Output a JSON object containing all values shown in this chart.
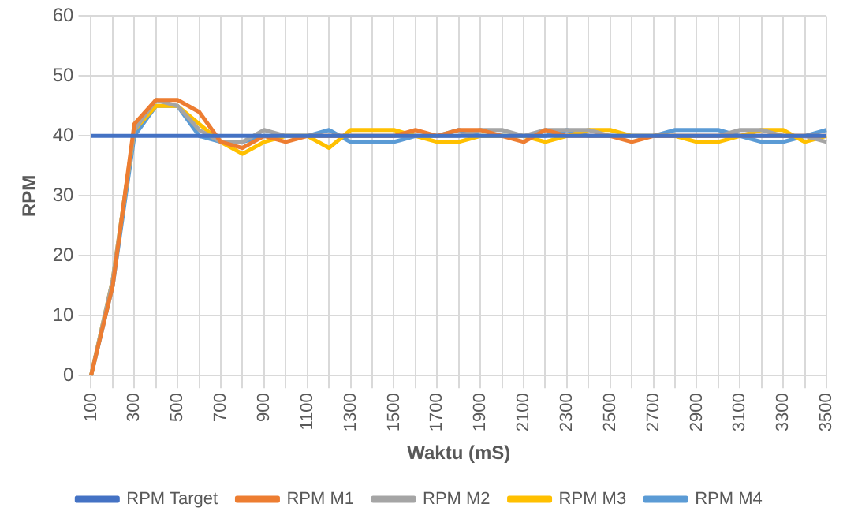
{
  "chart_data": {
    "type": "line",
    "xlabel": "Waktu (mS)",
    "ylabel": "RPM",
    "categories": [
      "100",
      null,
      "300",
      null,
      "500",
      null,
      "700",
      null,
      "900",
      null,
      "1100",
      null,
      "1300",
      null,
      "1500",
      null,
      "1700",
      null,
      "1900",
      null,
      "2100",
      null,
      "2300",
      null,
      "2500",
      null,
      "2700",
      null,
      "2900",
      null,
      "3100",
      null,
      "3300",
      null,
      "3500"
    ],
    "series": [
      {
        "name": "RPM Target",
        "color": "#4472c4",
        "values": [
          40,
          40,
          40,
          40,
          40,
          40,
          40,
          40,
          40,
          40,
          40,
          40,
          40,
          40,
          40,
          40,
          40,
          40,
          40,
          40,
          40,
          40,
          40,
          40,
          40,
          40,
          40,
          40,
          40,
          40,
          40,
          40,
          40,
          40,
          40
        ]
      },
      {
        "name": "RPM M1",
        "color": "#ed7d31",
        "values": [
          0,
          15,
          42,
          46,
          46,
          44,
          39,
          38,
          40,
          39,
          40,
          40,
          40,
          40,
          40,
          41,
          40,
          41,
          41,
          40,
          39,
          41,
          40,
          40,
          40,
          39,
          40,
          40,
          40,
          40,
          40,
          40,
          40,
          40,
          40
        ]
      },
      {
        "name": "RPM M2",
        "color": "#a5a5a5",
        "values": [
          0,
          16,
          41,
          46,
          45,
          41,
          39,
          39,
          41,
          40,
          40,
          40,
          40,
          40,
          40,
          40,
          40,
          40,
          41,
          41,
          40,
          41,
          41,
          41,
          40,
          40,
          40,
          40,
          40,
          40,
          41,
          41,
          40,
          40,
          39
        ]
      },
      {
        "name": "RPM M3",
        "color": "#ffc000",
        "values": [
          0,
          16,
          41,
          45,
          45,
          42,
          39,
          37,
          39,
          40,
          40,
          38,
          41,
          41,
          41,
          40,
          39,
          39,
          40,
          40,
          40,
          39,
          40,
          41,
          41,
          40,
          40,
          40,
          39,
          39,
          40,
          41,
          41,
          39,
          40
        ]
      },
      {
        "name": "RPM M4",
        "color": "#5b9bd5",
        "values": [
          0,
          15,
          40,
          45,
          45,
          40,
          39,
          39,
          40,
          40,
          40,
          41,
          39,
          39,
          39,
          40,
          40,
          41,
          40,
          40,
          40,
          40,
          41,
          40,
          40,
          40,
          40,
          41,
          41,
          41,
          40,
          39,
          39,
          40,
          41
        ]
      }
    ],
    "ylim": [
      0,
      60
    ],
    "yticks": [
      0,
      10,
      20,
      30,
      40,
      50,
      60
    ],
    "grid": true,
    "legend": "bottom",
    "marker": "none",
    "line_style": "solid"
  }
}
